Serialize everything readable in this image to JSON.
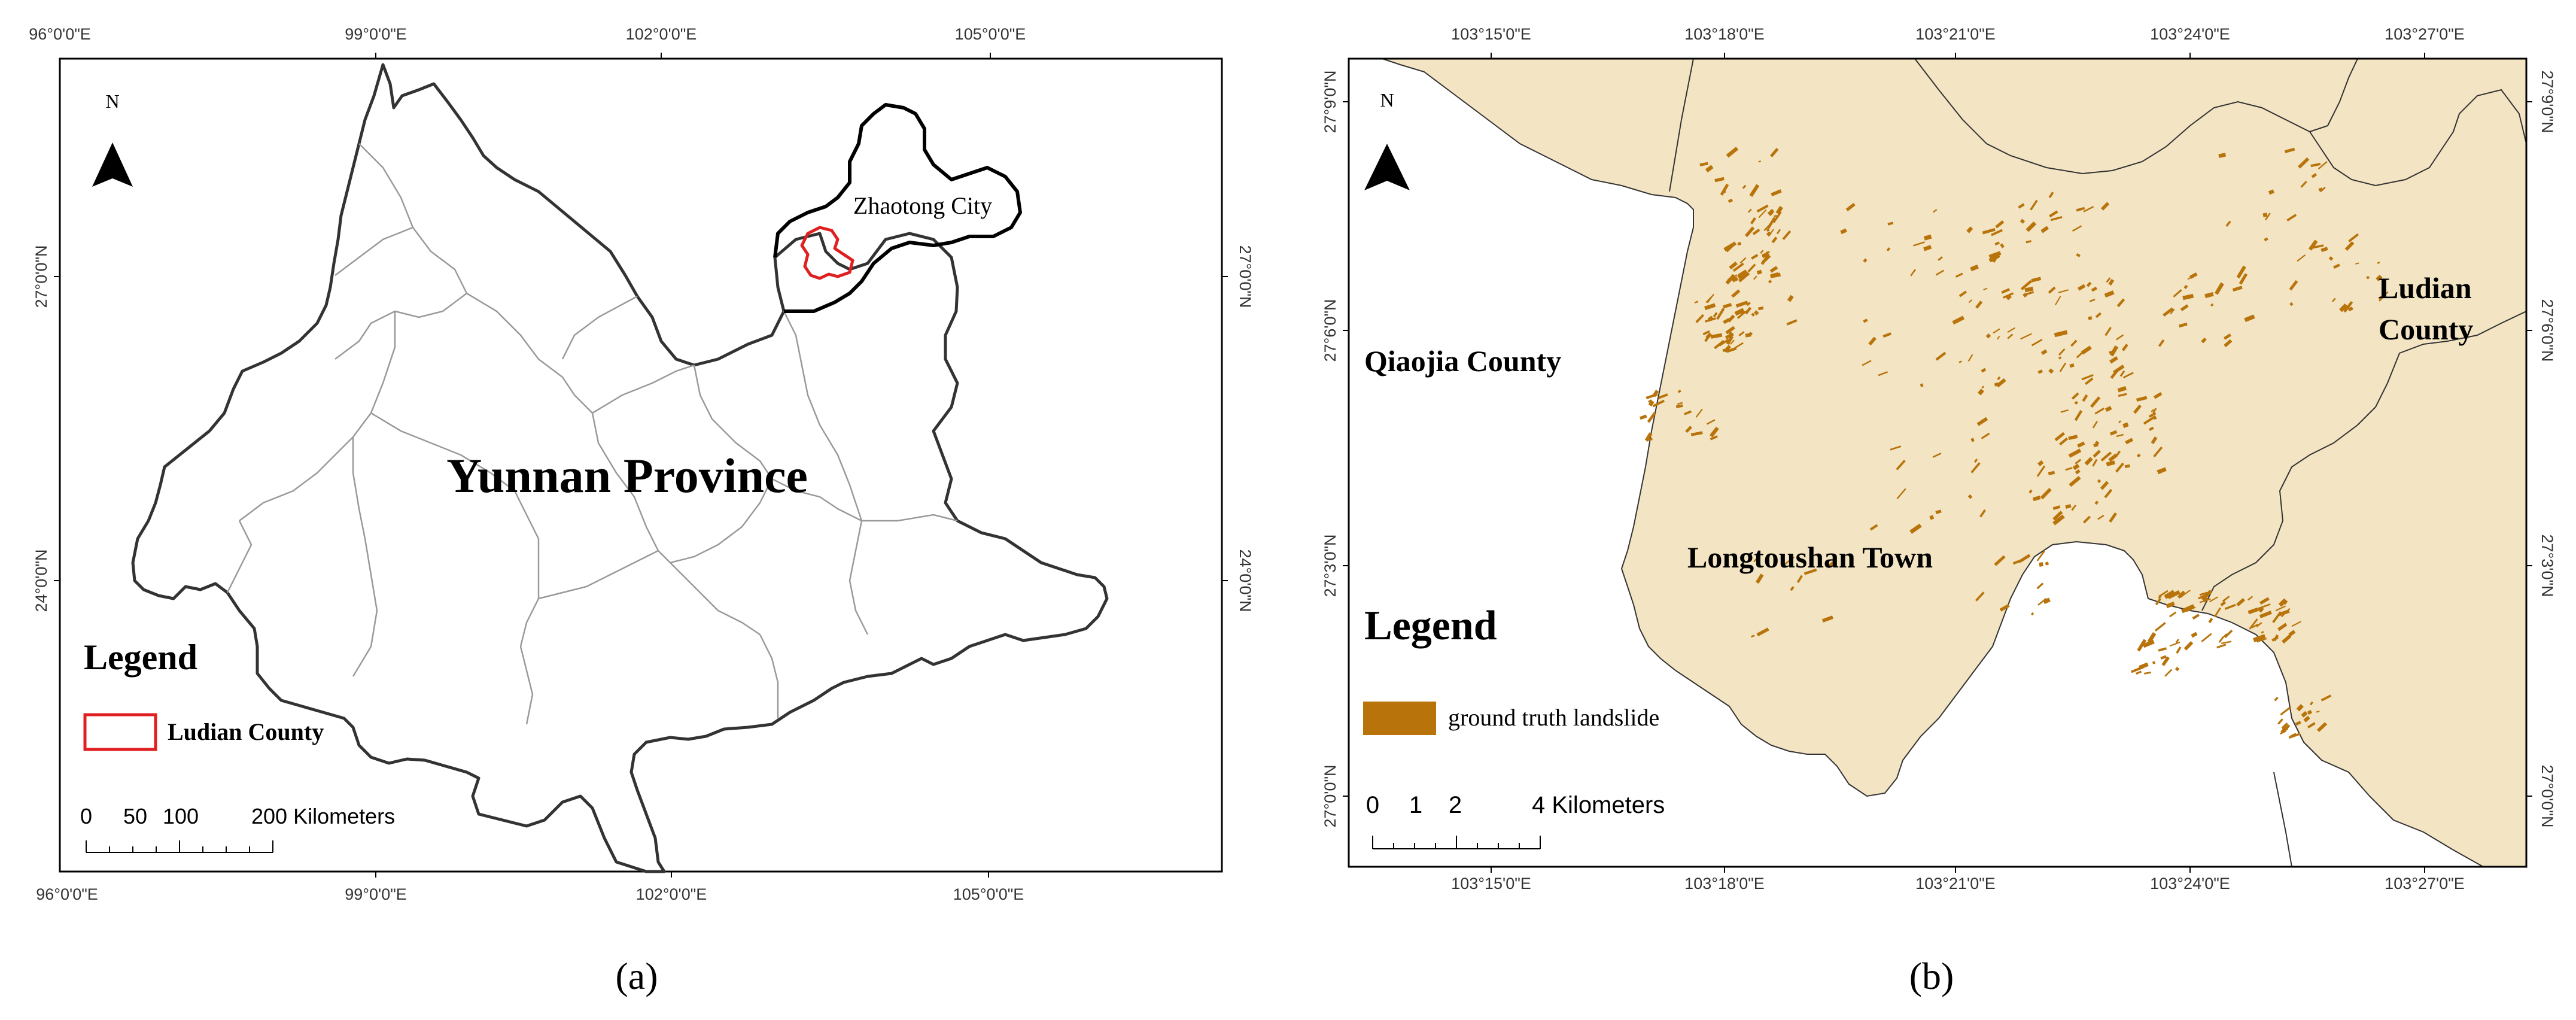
{
  "panel_a": {
    "top_lon_labels": [
      "96°0'0\"E",
      "99°0'0\"E",
      "102°0'0\"E",
      "105°0'0\"E"
    ],
    "bottom_lon_labels": [
      "96°0'0\"E",
      "99°0'0\"E",
      "102°0'0\"E",
      "105°0'0\"E"
    ],
    "left_lat_labels": [
      "27°0'0\"N",
      "24°0'0\"N"
    ],
    "right_lat_labels": [
      "27°0'0\"N",
      "24°0'0\"N"
    ],
    "north_label": "N",
    "region_label": "Yunnan Province",
    "city_label": "Zhaotong City",
    "legend_title": "Legend",
    "legend_item": "Ludian County",
    "legend_item_color": "#e02020",
    "scale_ticks": [
      "0",
      "50",
      "100",
      "200 Kilometers"
    ],
    "caption": "(a)"
  },
  "panel_b": {
    "top_lon_labels": [
      "103°15'0\"E",
      "103°18'0\"E",
      "103°21'0\"E",
      "103°24'0\"E",
      "103°27'0\"E"
    ],
    "bottom_lon_labels": [
      "103°15'0\"E",
      "103°18'0\"E",
      "103°21'0\"E",
      "103°24'0\"E",
      "103°27'0\"E"
    ],
    "left_lat_labels": [
      "27°9'0\"N",
      "27°6'0\"N",
      "27°3'0\"N",
      "27°0'0\"N"
    ],
    "right_lat_labels": [
      "27°9'0\"N",
      "27°6'0\"N",
      "27°3'0\"N",
      "27°0'0\"N"
    ],
    "north_label": "N",
    "label_qiaojia": "Qiaojia County",
    "label_ludian_1": "Ludian",
    "label_ludian_2": "County",
    "label_longtoushan": "Longtoushan Town",
    "legend_title": "Legend",
    "legend_item": "ground truth landslide",
    "landslide_color": "#b8730a",
    "land_color": "#f3e4c3",
    "scale_ticks": [
      "0",
      "1",
      "2",
      "4 Kilometers"
    ],
    "caption": "(b)"
  }
}
